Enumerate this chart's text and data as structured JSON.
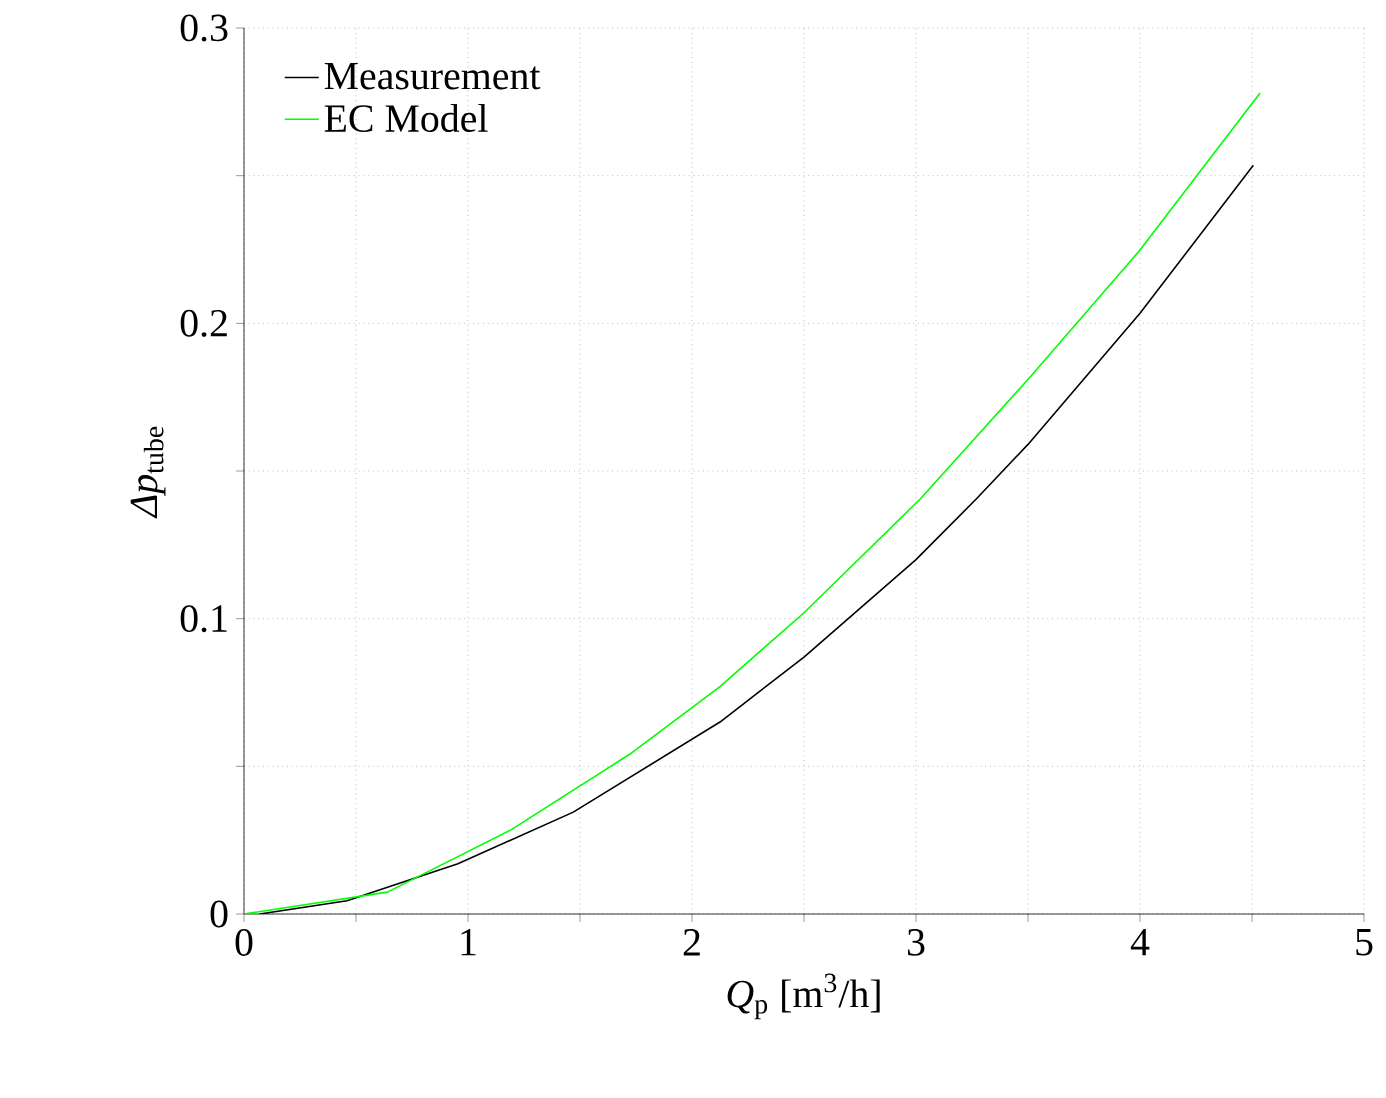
{
  "chart_data": {
    "type": "line",
    "xlabel": "*Q*$_{p}$ [m$^{3}$/h]",
    "ylabel": "*Δp*$_{tube}$",
    "series": [
      {
        "name": "Measurement",
        "color": "#000000",
        "x": [
          0.07,
          0.46,
          0.955,
          1.47,
          2.125,
          2.5,
          3.0,
          3.27,
          3.5,
          4.0,
          4.506
        ],
        "values": [
          0,
          0.0045,
          0.017,
          0.0345,
          0.065,
          0.087,
          0.12,
          0.1406,
          0.159,
          0.2034,
          0.2535
        ]
      },
      {
        "name": "EC Model",
        "color": "#00ff00",
        "x": [
          0,
          0.64,
          1.19,
          1.72,
          2.125,
          2.5,
          3.02,
          3.5,
          4.0,
          4.536
        ],
        "values": [
          0,
          0.0074,
          0.0284,
          0.054,
          0.077,
          0.102,
          0.1406,
          0.181,
          0.2248,
          0.278
        ]
      }
    ],
    "xlim": [
      0,
      5
    ],
    "ylim": [
      0,
      0.3
    ],
    "xticks": [
      0,
      {
        "value": 0.5,
        "label": null
      },
      1,
      {
        "value": 1.5,
        "label": null
      },
      2,
      {
        "value": 2.5,
        "label": null
      },
      3,
      {
        "value": 3.5,
        "label": null
      },
      4,
      {
        "value": 4.5,
        "label": null
      },
      5
    ],
    "yticks": [
      0,
      {
        "value": 0.05,
        "label": null
      },
      0.1,
      {
        "value": 0.15,
        "label": null
      },
      0.2,
      {
        "value": 0.25,
        "label": null
      },
      0.3
    ],
    "grid": true,
    "legend": "top left",
    "marker": "none",
    "line_style": "solid"
  }
}
